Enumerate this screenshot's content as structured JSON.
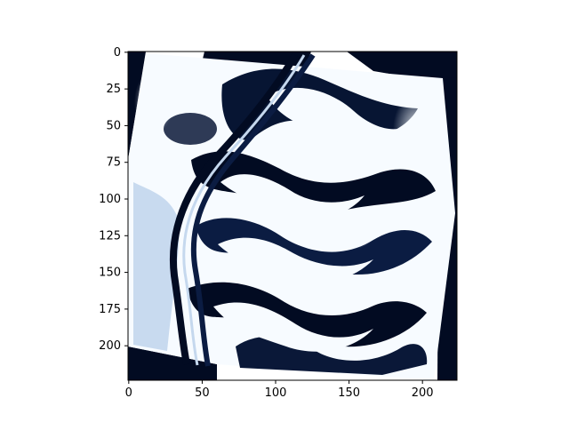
{
  "figure": {
    "type": "image-plot",
    "colormap": "Blues_r (dark navy to white)",
    "colors": {
      "background": "#ffffff",
      "dark": "#020b22",
      "mid": "#3f5c94",
      "light": "#f7fbff",
      "axis": "#000000"
    }
  },
  "axes": {
    "x_ticks": [
      "0",
      "50",
      "100",
      "150",
      "200"
    ],
    "y_ticks": [
      "0",
      "25",
      "50",
      "75",
      "100",
      "125",
      "150",
      "175",
      "200"
    ],
    "x_tick_values": [
      0,
      50,
      100,
      150,
      200
    ],
    "y_tick_values": [
      0,
      25,
      50,
      75,
      100,
      125,
      150,
      175,
      200
    ],
    "xlim": [
      -0.5,
      223.5
    ],
    "ylim": [
      223.5,
      -0.5
    ],
    "grid": false
  }
}
